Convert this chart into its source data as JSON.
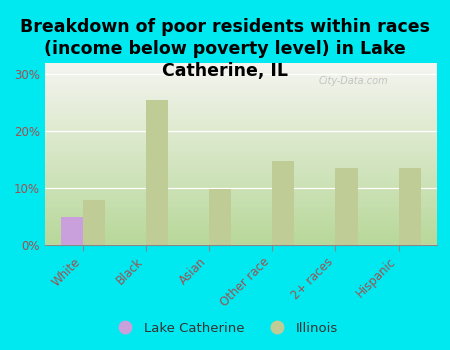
{
  "title": "Breakdown of poor residents within races\n(income below poverty level) in Lake\nCatherine, IL",
  "categories": [
    "White",
    "Black",
    "Asian",
    "Other race",
    "2+ races",
    "Hispanic"
  ],
  "lake_catherine": [
    5.0,
    0.0,
    0.0,
    0.0,
    0.0,
    0.0
  ],
  "illinois": [
    8.0,
    25.5,
    9.8,
    14.8,
    13.5,
    13.5
  ],
  "bar_color_lc": "#c9a0dc",
  "bar_color_il": "#bfcc96",
  "background_outer": "#00e8f0",
  "background_plot_bottom": "#b8d89a",
  "background_plot_top": "#f5f5f0",
  "yticks": [
    0,
    10,
    20,
    30
  ],
  "ylim": [
    0,
    32
  ],
  "legend_lc": "Lake Catherine",
  "legend_il": "Illinois",
  "watermark": "City-Data.com",
  "title_fontsize": 12.5,
  "bar_width": 0.35,
  "tick_label_color": "#a05050",
  "ytick_label_color": "#a05050"
}
